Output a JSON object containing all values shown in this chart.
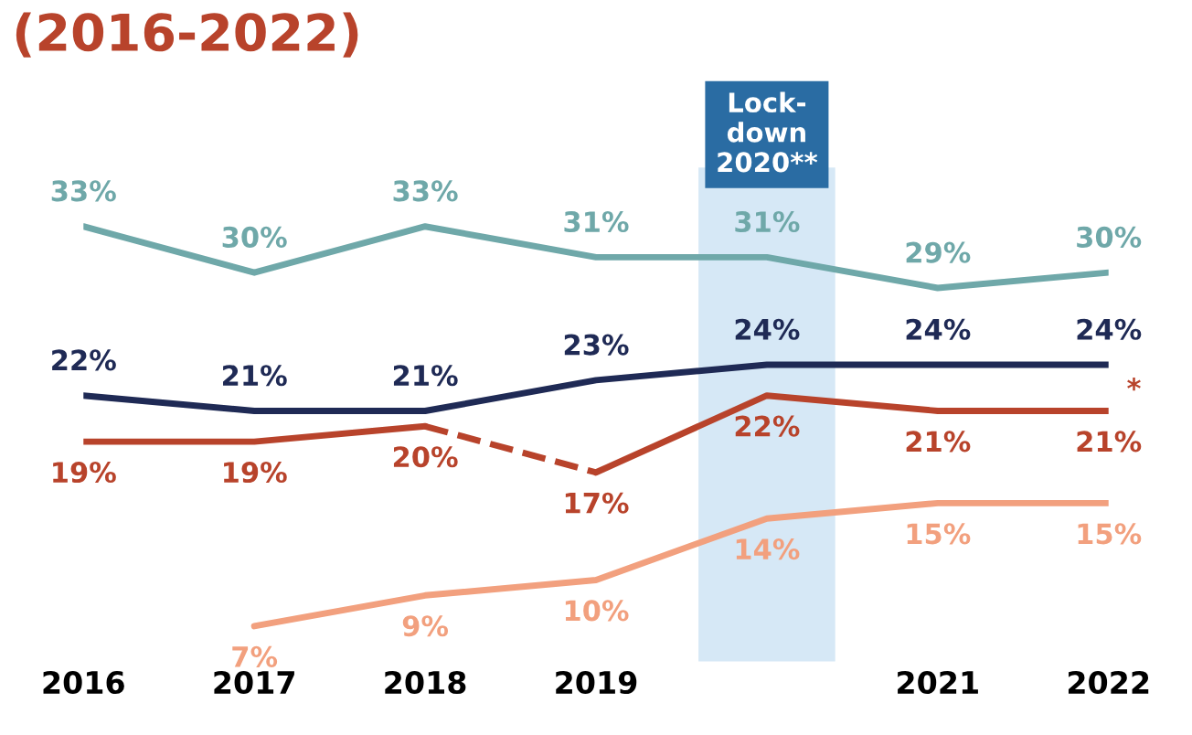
{
  "chart_data": {
    "type": "line",
    "title": "(2016-2022)",
    "xlim": [
      2016,
      2022
    ],
    "xticks": [
      2016,
      2017,
      2018,
      2019,
      2021,
      2022
    ],
    "tick_labels": "x",
    "grid": false,
    "legend": false,
    "line_style": "solid",
    "series": [
      {
        "color": "#6fa8a9",
        "x": [
          2016,
          2017,
          2018,
          2019,
          2020,
          2021,
          2022
        ],
        "values": [
          33,
          30,
          33,
          31,
          31,
          29,
          30
        ],
        "value_labels": [
          "33%",
          "30%",
          "33%",
          "31%",
          "31%",
          "29%",
          "30%"
        ]
      },
      {
        "color": "#1f2a55",
        "x": [
          2016,
          2017,
          2018,
          2019,
          2020,
          2021,
          2022
        ],
        "values": [
          22,
          21,
          21,
          23,
          24,
          24,
          24
        ],
        "value_labels": [
          "22%",
          "21%",
          "21%",
          "23%",
          "24%",
          "24%",
          "24%"
        ]
      },
      {
        "color": "#b8432b",
        "x": [
          2016,
          2017,
          2018
        ],
        "values": [
          19,
          19,
          20
        ],
        "value_labels": [
          "19%",
          "19%",
          "20%"
        ]
      },
      {
        "color": "#b8432b",
        "x": [
          2018,
          2019
        ],
        "values": [
          20,
          17
        ],
        "line_style": "dashed",
        "value_labels": [
          null,
          null
        ]
      },
      {
        "color": "#b8432b",
        "x": [
          2019,
          2020,
          2021,
          2022
        ],
        "values": [
          17,
          22,
          21,
          21
        ],
        "value_labels": [
          "17%",
          "22%",
          "21%",
          "21%"
        ]
      },
      {
        "color": "#f2a07e",
        "x": [
          2017,
          2018,
          2019,
          2020,
          2021,
          2022
        ],
        "values": [
          7,
          9,
          10,
          14,
          15,
          15
        ],
        "value_labels": [
          "7%",
          "9%",
          "10%",
          "14%",
          "15%",
          "15%"
        ]
      }
    ],
    "bands": [
      {
        "axis": "x",
        "from": 2019.6,
        "to": 2020.4,
        "label": "Lock-\ndown\n2020**",
        "color": "#d6e8f6"
      }
    ],
    "annotations": [
      {
        "text": "*",
        "x": 2022,
        "y": 21
      }
    ]
  }
}
